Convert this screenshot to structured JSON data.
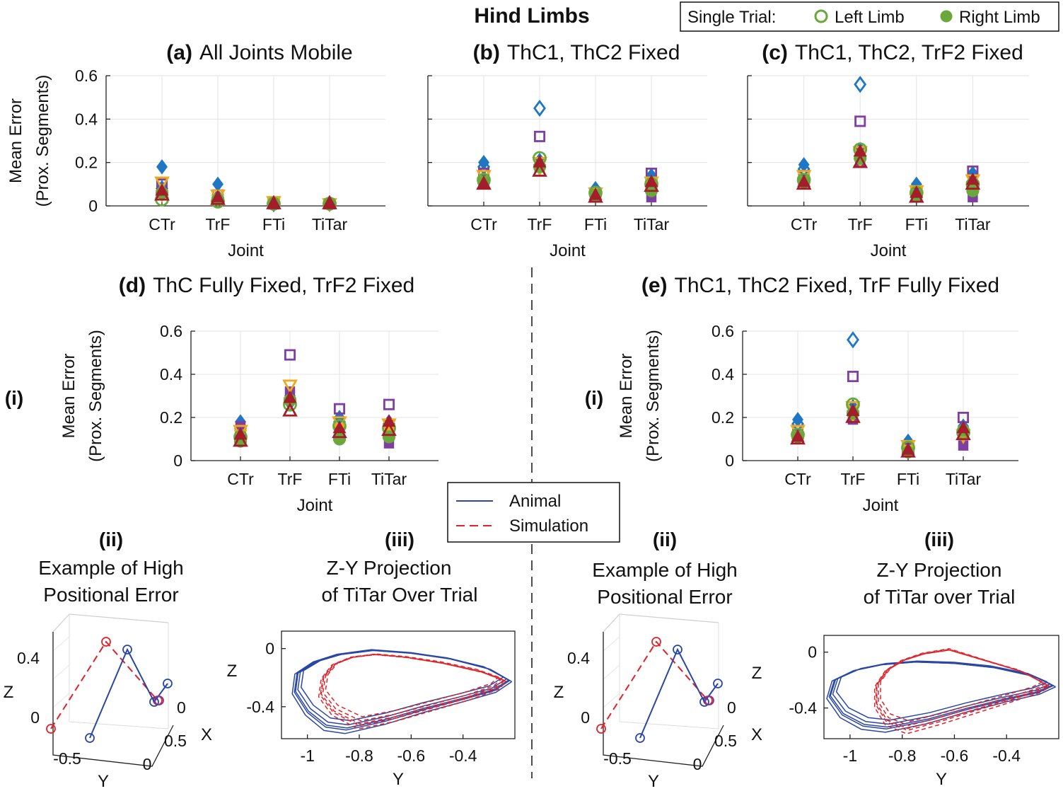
{
  "figure": {
    "main_title": "Hind Limbs",
    "legend_top": {
      "prefix": "Single Trial:",
      "left": "Left Limb",
      "right": "Right Limb"
    },
    "legend_mid": {
      "animal": "Animal",
      "simulation": "Simulation"
    },
    "side_i": "(i)",
    "sub_ii_tag": "(ii)",
    "sub_iii_tag": "(iii)",
    "sub_ii_line1": "Example of High",
    "sub_ii_line2": "Positional Error",
    "sub_iii_d_line1": "Z-Y Projection",
    "sub_iii_d_line2": "of TiTar Over Trial",
    "sub_iii_e_line1": "Z-Y Projection",
    "sub_iii_e_line2": "of TiTar over Trial"
  },
  "colors": {
    "blue": "#1f77c4",
    "purple": "#7e3fa0",
    "orange": "#f0a81c",
    "green": "#6aa83b",
    "red": "#a31d2b",
    "animal": "#2a47a6",
    "sim": "#e0232a"
  },
  "chart_data": [
    {
      "id": "a",
      "type": "scatter",
      "tag": "(a)",
      "title": "All Joints Mobile",
      "xlabel": "Joint",
      "ylabel": [
        "Mean Error",
        "(Prox. Segments)"
      ],
      "categories": [
        "CTr",
        "TrF",
        "FTi",
        "TiTar"
      ],
      "ylim": [
        0,
        0.6
      ],
      "yticks": [
        0,
        0.2,
        0.4,
        0.6
      ],
      "series": [
        {
          "color": "blue",
          "marker": "diamond",
          "filled": true,
          "values": [
            0.18,
            0.1,
            0.01,
            0.01
          ]
        },
        {
          "color": "blue",
          "marker": "diamond",
          "filled": false,
          "values": [
            0.08,
            0.04,
            0.01,
            0.01
          ]
        },
        {
          "color": "purple",
          "marker": "square",
          "filled": false,
          "values": [
            0.1,
            0.05,
            0.01,
            0.01
          ]
        },
        {
          "color": "purple",
          "marker": "square",
          "filled": true,
          "values": [
            0.06,
            0.03,
            0.01,
            0.01
          ]
        },
        {
          "color": "orange",
          "marker": "triangle-down",
          "filled": false,
          "values": [
            0.11,
            0.05,
            0.02,
            0.01
          ]
        },
        {
          "color": "orange",
          "marker": "triangle-down",
          "filled": true,
          "values": [
            0.05,
            0.03,
            0.01,
            0.01
          ]
        },
        {
          "color": "green",
          "marker": "circle",
          "filled": false,
          "values": [
            0.03,
            0.02,
            0.01,
            0.01
          ]
        },
        {
          "color": "green",
          "marker": "circle",
          "filled": true,
          "values": [
            0.06,
            0.03,
            0.01,
            0.01
          ]
        },
        {
          "color": "red",
          "marker": "triangle-up",
          "filled": false,
          "values": [
            0.05,
            0.03,
            0.01,
            0.01
          ]
        },
        {
          "color": "red",
          "marker": "triangle-up",
          "filled": true,
          "values": [
            0.07,
            0.04,
            0.01,
            0.01
          ]
        }
      ]
    },
    {
      "id": "b",
      "type": "scatter",
      "tag": "(b)",
      "title": "ThC1, ThC2 Fixed",
      "xlabel": "Joint",
      "ylabel": null,
      "categories": [
        "CTr",
        "TrF",
        "FTi",
        "TiTar"
      ],
      "ylim": [
        0,
        0.6
      ],
      "yticks": [
        0,
        0.2,
        0.4,
        0.6
      ],
      "series": [
        {
          "color": "blue",
          "marker": "diamond",
          "filled": true,
          "values": [
            0.2,
            0.21,
            0.08,
            0.14
          ]
        },
        {
          "color": "blue",
          "marker": "diamond",
          "filled": false,
          "values": [
            0.18,
            0.45,
            0.07,
            0.12
          ]
        },
        {
          "color": "purple",
          "marker": "square",
          "filled": false,
          "values": [
            0.15,
            0.32,
            0.06,
            0.15
          ]
        },
        {
          "color": "purple",
          "marker": "square",
          "filled": true,
          "values": [
            0.12,
            0.18,
            0.04,
            0.04
          ]
        },
        {
          "color": "orange",
          "marker": "triangle-down",
          "filled": false,
          "values": [
            0.14,
            0.2,
            0.06,
            0.11
          ]
        },
        {
          "color": "orange",
          "marker": "triangle-down",
          "filled": true,
          "values": [
            0.11,
            0.17,
            0.05,
            0.09
          ]
        },
        {
          "color": "green",
          "marker": "circle",
          "filled": false,
          "values": [
            0.12,
            0.22,
            0.06,
            0.1
          ]
        },
        {
          "color": "green",
          "marker": "circle",
          "filled": true,
          "values": [
            0.11,
            0.18,
            0.05,
            0.07
          ]
        },
        {
          "color": "red",
          "marker": "triangle-up",
          "filled": false,
          "values": [
            0.1,
            0.16,
            0.04,
            0.09
          ]
        },
        {
          "color": "red",
          "marker": "triangle-up",
          "filled": true,
          "values": [
            0.1,
            0.2,
            0.05,
            0.11
          ]
        }
      ]
    },
    {
      "id": "c",
      "type": "scatter",
      "tag": "(c)",
      "title": "ThC1, ThC2, TrF2 Fixed",
      "xlabel": "Joint",
      "ylabel": null,
      "categories": [
        "CTr",
        "TrF",
        "FTi",
        "TiTar"
      ],
      "ylim": [
        0,
        0.6
      ],
      "yticks": [
        0,
        0.2,
        0.4,
        0.6
      ],
      "series": [
        {
          "color": "blue",
          "marker": "diamond",
          "filled": true,
          "values": [
            0.19,
            0.26,
            0.1,
            0.15
          ]
        },
        {
          "color": "blue",
          "marker": "diamond",
          "filled": false,
          "values": [
            0.17,
            0.56,
            0.08,
            0.14
          ]
        },
        {
          "color": "purple",
          "marker": "square",
          "filled": false,
          "values": [
            0.14,
            0.39,
            0.06,
            0.16
          ]
        },
        {
          "color": "purple",
          "marker": "square",
          "filled": true,
          "values": [
            0.12,
            0.2,
            0.04,
            0.04
          ]
        },
        {
          "color": "orange",
          "marker": "triangle-down",
          "filled": false,
          "values": [
            0.14,
            0.25,
            0.07,
            0.12
          ]
        },
        {
          "color": "orange",
          "marker": "triangle-down",
          "filled": true,
          "values": [
            0.11,
            0.21,
            0.05,
            0.09
          ]
        },
        {
          "color": "green",
          "marker": "circle",
          "filled": false,
          "values": [
            0.12,
            0.26,
            0.06,
            0.1
          ]
        },
        {
          "color": "green",
          "marker": "circle",
          "filled": true,
          "values": [
            0.11,
            0.22,
            0.05,
            0.07
          ]
        },
        {
          "color": "red",
          "marker": "triangle-up",
          "filled": false,
          "values": [
            0.1,
            0.2,
            0.04,
            0.1
          ]
        },
        {
          "color": "red",
          "marker": "triangle-up",
          "filled": true,
          "values": [
            0.11,
            0.25,
            0.06,
            0.12
          ]
        }
      ]
    },
    {
      "id": "d",
      "type": "scatter",
      "tag": "(d)",
      "title": "ThC Fully Fixed, TrF2 Fixed",
      "xlabel": "Joint",
      "ylabel": [
        "Mean Error",
        "(Prox. Segments)"
      ],
      "categories": [
        "CTr",
        "TrF",
        "FTi",
        "TiTar"
      ],
      "ylim": [
        0,
        0.6
      ],
      "yticks": [
        0,
        0.2,
        0.4,
        0.6
      ],
      "series": [
        {
          "color": "blue",
          "marker": "diamond",
          "filled": true,
          "values": [
            0.18,
            0.3,
            0.2,
            0.18
          ]
        },
        {
          "color": "blue",
          "marker": "diamond",
          "filled": false,
          "values": [
            0.15,
            0.27,
            0.18,
            0.17
          ]
        },
        {
          "color": "purple",
          "marker": "square",
          "filled": false,
          "values": [
            0.13,
            0.49,
            0.24,
            0.26
          ]
        },
        {
          "color": "purple",
          "marker": "square",
          "filled": true,
          "values": [
            0.16,
            0.32,
            0.14,
            0.08
          ]
        },
        {
          "color": "orange",
          "marker": "triangle-down",
          "filled": false,
          "values": [
            0.14,
            0.35,
            0.18,
            0.17
          ]
        },
        {
          "color": "orange",
          "marker": "triangle-down",
          "filled": true,
          "values": [
            0.12,
            0.27,
            0.15,
            0.14
          ]
        },
        {
          "color": "green",
          "marker": "circle",
          "filled": false,
          "values": [
            0.11,
            0.26,
            0.16,
            0.15
          ]
        },
        {
          "color": "green",
          "marker": "circle",
          "filled": true,
          "values": [
            0.09,
            0.28,
            0.1,
            0.11
          ]
        },
        {
          "color": "red",
          "marker": "triangle-up",
          "filled": false,
          "values": [
            0.09,
            0.23,
            0.13,
            0.14
          ]
        },
        {
          "color": "red",
          "marker": "triangle-up",
          "filled": true,
          "values": [
            0.12,
            0.29,
            0.15,
            0.18
          ]
        }
      ]
    },
    {
      "id": "e",
      "type": "scatter",
      "tag": "(e)",
      "title": "ThC1, ThC2 Fixed, TrF Fully Fixed",
      "xlabel": "Joint",
      "ylabel": [
        "Mean Error",
        "(Prox. Segments)"
      ],
      "categories": [
        "CTr",
        "TrF",
        "FTi",
        "TiTar"
      ],
      "ylim": [
        0,
        0.6
      ],
      "yticks": [
        0,
        0.2,
        0.4,
        0.6
      ],
      "series": [
        {
          "color": "blue",
          "marker": "diamond",
          "filled": true,
          "values": [
            0.19,
            0.25,
            0.09,
            0.16
          ]
        },
        {
          "color": "blue",
          "marker": "diamond",
          "filled": false,
          "values": [
            0.17,
            0.56,
            0.08,
            0.14
          ]
        },
        {
          "color": "purple",
          "marker": "square",
          "filled": false,
          "values": [
            0.14,
            0.39,
            0.06,
            0.2
          ]
        },
        {
          "color": "purple",
          "marker": "square",
          "filled": true,
          "values": [
            0.12,
            0.19,
            0.04,
            0.07
          ]
        },
        {
          "color": "orange",
          "marker": "triangle-down",
          "filled": false,
          "values": [
            0.14,
            0.25,
            0.07,
            0.12
          ]
        },
        {
          "color": "orange",
          "marker": "triangle-down",
          "filled": true,
          "values": [
            0.11,
            0.21,
            0.05,
            0.11
          ]
        },
        {
          "color": "green",
          "marker": "circle",
          "filled": false,
          "values": [
            0.12,
            0.26,
            0.06,
            0.13
          ]
        },
        {
          "color": "green",
          "marker": "circle",
          "filled": true,
          "values": [
            0.11,
            0.22,
            0.04,
            0.14
          ]
        },
        {
          "color": "red",
          "marker": "triangle-up",
          "filled": false,
          "values": [
            0.1,
            0.2,
            0.04,
            0.12
          ]
        },
        {
          "color": "red",
          "marker": "triangle-up",
          "filled": true,
          "values": [
            0.11,
            0.23,
            0.05,
            0.15
          ]
        }
      ]
    },
    {
      "id": "d-iii",
      "type": "line",
      "xlabel": "Y",
      "ylabel": "Z",
      "xlim": [
        -1.1,
        -0.2
      ],
      "ylim": [
        -0.62,
        0.12
      ],
      "xticks": [
        -1,
        -0.8,
        -0.6,
        -0.4
      ],
      "xticklabels": [
        "-1",
        "-0.8",
        "-0.6",
        "-0.4"
      ],
      "yticks": [
        -0.4,
        0
      ],
      "yticklabels": [
        "-0.4",
        "0"
      ],
      "series": [
        {
          "role": "animal",
          "x": [
            -0.22,
            -0.3,
            -0.45,
            -0.6,
            -0.75,
            -0.88,
            -0.97,
            -1.04,
            -1.05,
            -1.0,
            -0.93,
            -0.85,
            -0.7,
            -0.55,
            -0.4,
            -0.28,
            -0.22
          ],
          "y": [
            -0.22,
            -0.14,
            -0.07,
            -0.03,
            -0.01,
            -0.04,
            -0.09,
            -0.17,
            -0.3,
            -0.44,
            -0.54,
            -0.56,
            -0.5,
            -0.42,
            -0.35,
            -0.29,
            -0.22
          ]
        },
        {
          "role": "simulation",
          "x": [
            -0.24,
            -0.33,
            -0.48,
            -0.62,
            -0.74,
            -0.83,
            -0.9,
            -0.94,
            -0.95,
            -0.9,
            -0.8,
            -0.66,
            -0.52,
            -0.38,
            -0.27,
            -0.24
          ],
          "y": [
            -0.22,
            -0.16,
            -0.1,
            -0.06,
            -0.04,
            -0.06,
            -0.11,
            -0.2,
            -0.32,
            -0.44,
            -0.53,
            -0.48,
            -0.41,
            -0.34,
            -0.27,
            -0.22
          ]
        }
      ]
    },
    {
      "id": "e-iii",
      "type": "line",
      "xlabel": "Y",
      "ylabel": "Z",
      "xlim": [
        -1.1,
        -0.2
      ],
      "ylim": [
        -0.62,
        0.12
      ],
      "xticks": [
        -1,
        -0.8,
        -0.6,
        -0.4
      ],
      "xticklabels": [
        "-1",
        "-0.8",
        "-0.6",
        "-0.4"
      ],
      "yticks": [
        -0.4,
        0
      ],
      "yticklabels": [
        "-0.4",
        "0"
      ],
      "series": [
        {
          "role": "animal",
          "x": [
            -0.22,
            -0.3,
            -0.45,
            -0.6,
            -0.75,
            -0.88,
            -0.98,
            -1.06,
            -1.08,
            -1.03,
            -0.95,
            -0.86,
            -0.7,
            -0.55,
            -0.4,
            -0.28,
            -0.22
          ],
          "y": [
            -0.24,
            -0.17,
            -0.11,
            -0.08,
            -0.07,
            -0.09,
            -0.13,
            -0.2,
            -0.32,
            -0.45,
            -0.53,
            -0.55,
            -0.49,
            -0.41,
            -0.34,
            -0.29,
            -0.24
          ]
        },
        {
          "role": "simulation",
          "x": [
            -0.24,
            -0.34,
            -0.48,
            -0.62,
            -0.72,
            -0.8,
            -0.86,
            -0.9,
            -0.9,
            -0.86,
            -0.78,
            -0.66,
            -0.52,
            -0.38,
            -0.28,
            -0.24
          ],
          "y": [
            -0.24,
            -0.14,
            -0.06,
            0.02,
            -0.01,
            -0.06,
            -0.13,
            -0.24,
            -0.38,
            -0.5,
            -0.56,
            -0.5,
            -0.42,
            -0.34,
            -0.28,
            -0.24
          ]
        }
      ]
    },
    {
      "id": "d-ii",
      "type": "line",
      "xlabel": "Y",
      "ylabel": "Z",
      "zlabel": "X",
      "yaxis_ticks": [
        "-0.5",
        "0"
      ],
      "zaxis_ticks": [
        "0",
        "0.4"
      ],
      "xaxis_ticks": [
        "0",
        "0.5"
      ]
    },
    {
      "id": "e-ii",
      "type": "line",
      "xlabel": "Y",
      "ylabel": "Z",
      "zlabel": "X",
      "yaxis_ticks": [
        "-0.5",
        "0"
      ],
      "zaxis_ticks": [
        "0",
        "0.4"
      ],
      "xaxis_ticks": [
        "0",
        "0.5"
      ]
    }
  ]
}
